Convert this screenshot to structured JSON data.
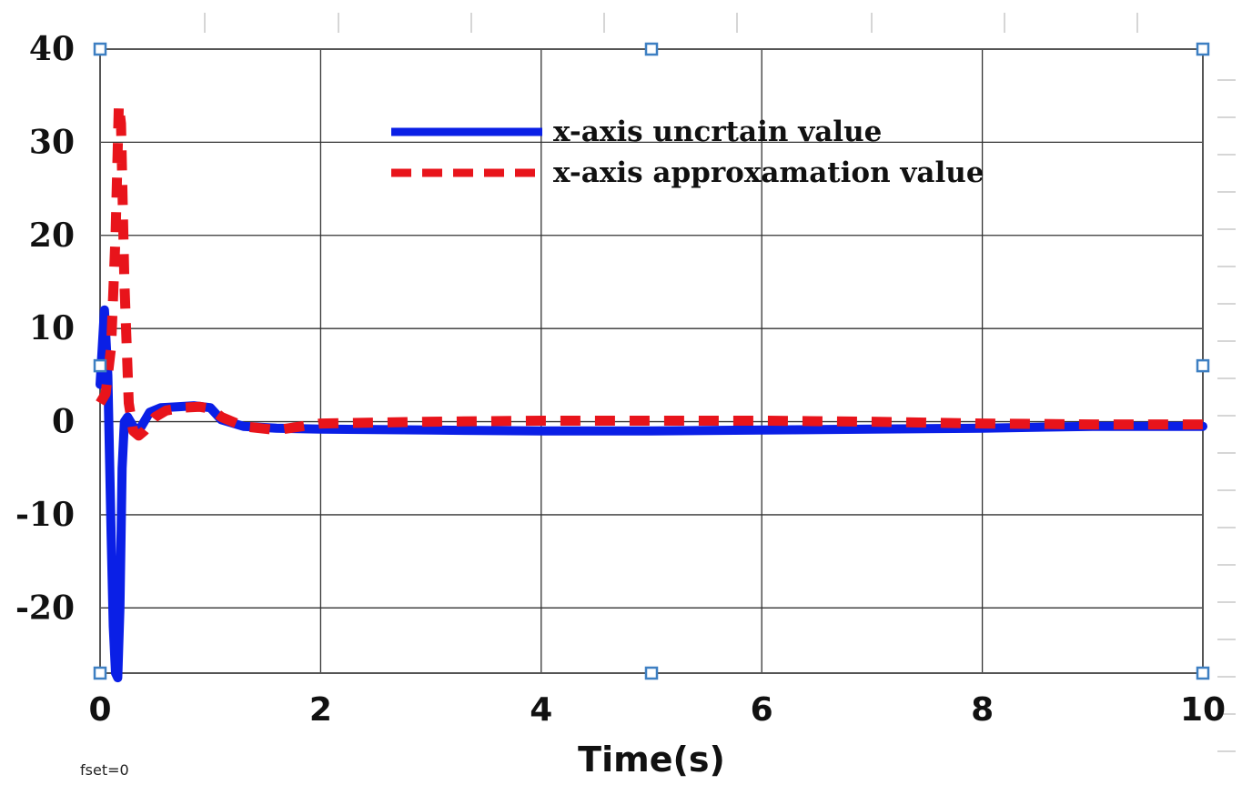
{
  "chart_data": {
    "type": "line",
    "xlabel": "Time(s)",
    "ylabel": "",
    "xlim": [
      0,
      10
    ],
    "ylim": [
      -27,
      40
    ],
    "xticks": [
      0,
      2,
      4,
      6,
      8,
      10
    ],
    "yticks": [
      40,
      30,
      20,
      10,
      0,
      -10,
      -20
    ],
    "ytick_labels": [
      "40",
      "30",
      "20",
      "10",
      "0",
      "-10",
      "-20"
    ],
    "grid": true,
    "legend_position": "top-center",
    "footnote": "fset=0",
    "series": [
      {
        "name": "x-axis uncrtain value",
        "color": "#0a1fe6",
        "style": "solid",
        "x": [
          0,
          0.04,
          0.07,
          0.1,
          0.12,
          0.14,
          0.16,
          0.18,
          0.2,
          0.22,
          0.25,
          0.3,
          0.35,
          0.45,
          0.55,
          0.7,
          0.85,
          1.0,
          1.1,
          1.3,
          1.6,
          2,
          3,
          4,
          5,
          6,
          7,
          8,
          9,
          10
        ],
        "y": [
          4,
          12,
          5,
          -12,
          -22,
          -27,
          -27.5,
          -20,
          -5,
          0,
          0.5,
          -0.5,
          -1.0,
          1.0,
          1.5,
          1.6,
          1.7,
          1.5,
          0.2,
          -0.5,
          -0.7,
          -0.8,
          -0.9,
          -1.0,
          -1.0,
          -0.9,
          -0.8,
          -0.7,
          -0.5,
          -0.5
        ]
      },
      {
        "name": "x-axis approxamation value",
        "color": "#e8141b",
        "style": "dashed",
        "x": [
          0,
          0.05,
          0.1,
          0.14,
          0.17,
          0.19,
          0.22,
          0.26,
          0.3,
          0.35,
          0.4,
          0.5,
          0.6,
          0.75,
          0.9,
          1.0,
          1.1,
          1.3,
          1.6,
          2,
          3,
          4,
          5,
          6,
          7,
          8,
          9,
          10
        ],
        "y": [
          2,
          3,
          8,
          20,
          34,
          32,
          15,
          2,
          -1.0,
          -1.5,
          -1.0,
          0.5,
          1.2,
          1.5,
          1.6,
          1.4,
          0.5,
          -0.5,
          -0.9,
          -0.2,
          0,
          0.1,
          0.1,
          0.1,
          0,
          -0.2,
          -0.3,
          -0.3
        ]
      }
    ]
  }
}
